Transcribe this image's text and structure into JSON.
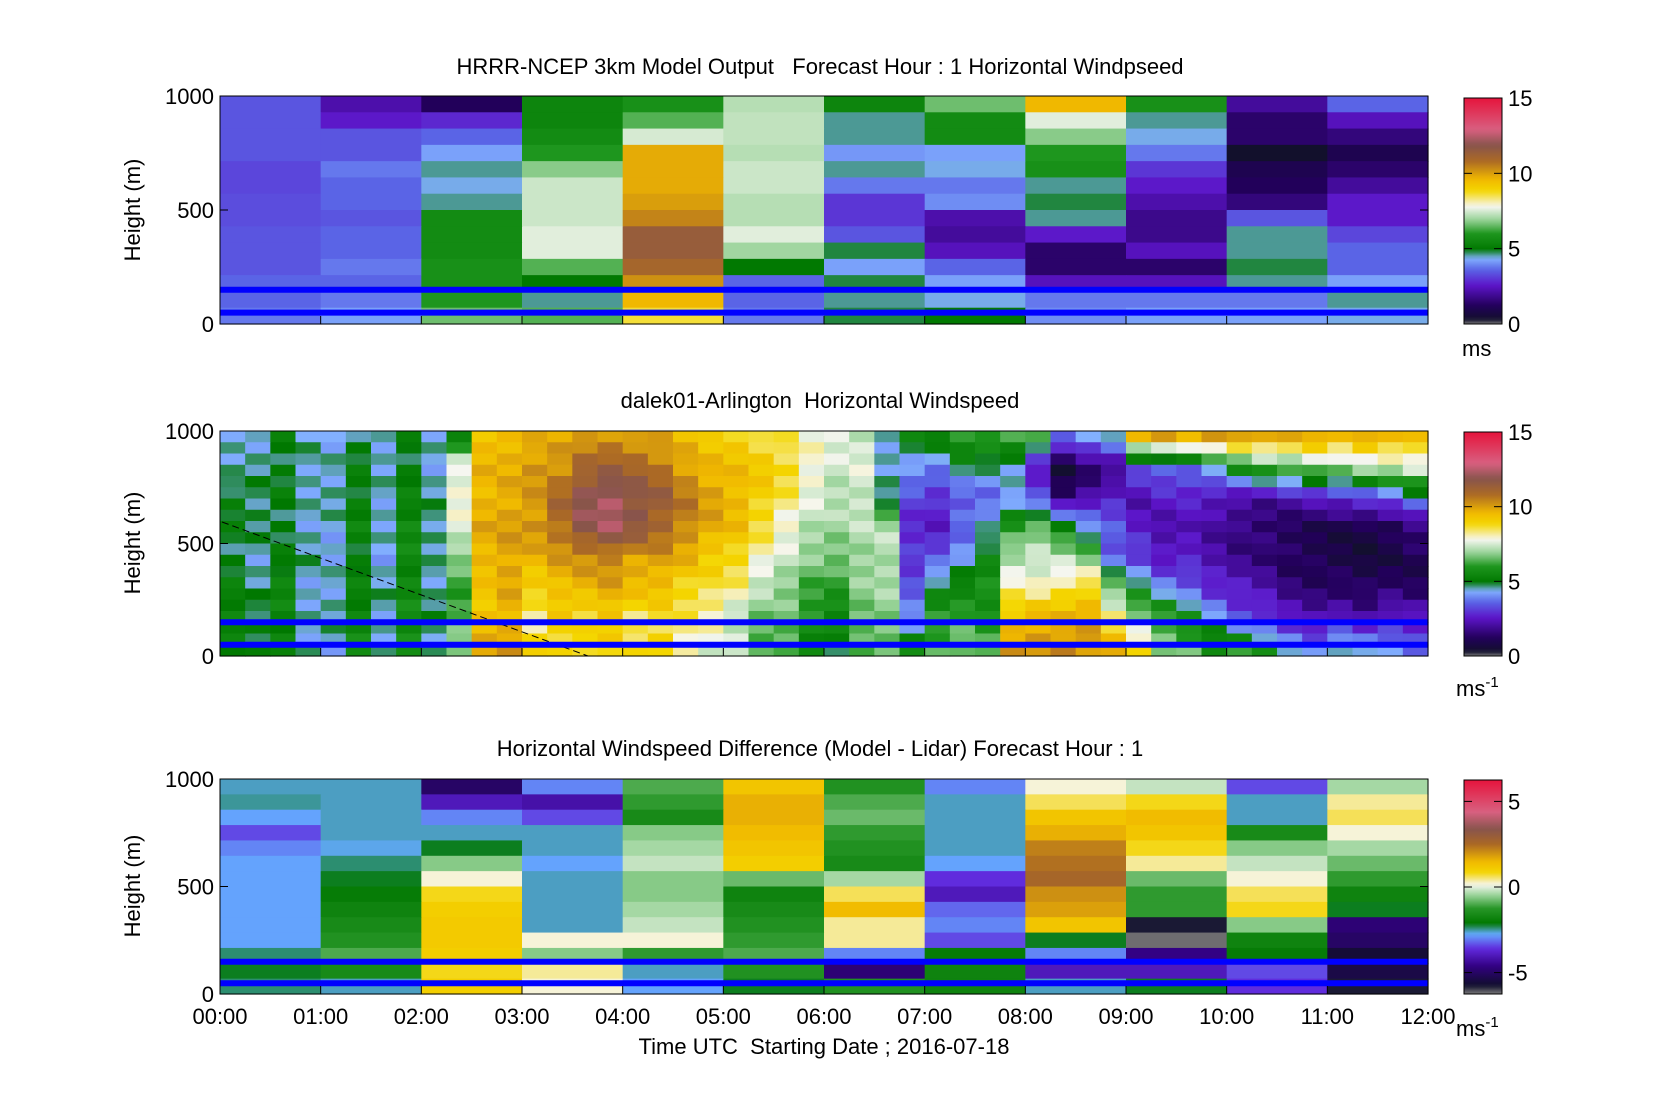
{
  "chart_data": [
    {
      "type": "heatmap",
      "title": "HRRR-NCEP 3km Model Output   Forecast Hour : 1 Horizontal Windpseed",
      "ylabel": "Height (m)",
      "ylim": [
        0,
        1000
      ],
      "yticks": [
        "0",
        "500",
        "1000"
      ],
      "colorbar": {
        "ticks": [
          "0",
          "5",
          "10",
          "15"
        ],
        "range": [
          0,
          15
        ],
        "unit": "ms",
        "unit_sup": ""
      },
      "reference_lines_m": [
        150,
        50
      ],
      "reference_line_color": "#0000ff",
      "ncols": 12,
      "nrows": 14,
      "values": [
        [
          3.4,
          2.2,
          1.2,
          5.4,
          5.8,
          7.2,
          5.4,
          6.6,
          9.6,
          5.8,
          2.0,
          3.6
        ],
        [
          3.4,
          2.6,
          2.8,
          5.4,
          6.4,
          7.3,
          4.6,
          5.6,
          7.6,
          4.6,
          1.4,
          2.4
        ],
        [
          3.4,
          3.4,
          3.6,
          5.6,
          7.5,
          7.3,
          4.6,
          5.6,
          6.8,
          4.4,
          1.4,
          1.6
        ],
        [
          3.4,
          3.4,
          4.2,
          6.0,
          9.8,
          7.2,
          4.1,
          4.2,
          6.0,
          3.8,
          0.3,
          1.0
        ],
        [
          3.2,
          3.8,
          4.6,
          6.8,
          9.8,
          7.4,
          4.6,
          4.4,
          5.8,
          3.0,
          1.0,
          1.4
        ],
        [
          3.2,
          3.6,
          4.4,
          7.4,
          9.8,
          7.4,
          3.8,
          3.8,
          4.6,
          2.6,
          1.2,
          2.0
        ],
        [
          3.3,
          3.6,
          4.6,
          7.4,
          10.0,
          7.2,
          3.0,
          4.0,
          4.8,
          2.2,
          1.6,
          2.6
        ],
        [
          3.3,
          3.4,
          5.6,
          7.4,
          10.4,
          7.2,
          3.0,
          2.2,
          4.6,
          1.8,
          3.4,
          2.6
        ],
        [
          3.4,
          3.6,
          5.6,
          7.6,
          11.4,
          7.6,
          3.4,
          2.0,
          2.6,
          1.8,
          4.6,
          3.2
        ],
        [
          3.4,
          3.6,
          5.6,
          7.6,
          11.4,
          7.0,
          4.8,
          2.4,
          1.4,
          2.4,
          4.6,
          3.6
        ],
        [
          3.4,
          3.8,
          5.8,
          6.4,
          11.0,
          5.0,
          4.2,
          3.6,
          1.4,
          1.4,
          4.8,
          3.6
        ],
        [
          3.6,
          3.6,
          5.8,
          5.0,
          10.2,
          3.6,
          4.8,
          4.2,
          2.4,
          2.4,
          4.6,
          4.2
        ],
        [
          3.6,
          3.8,
          6.0,
          4.6,
          9.6,
          3.6,
          4.6,
          4.4,
          3.8,
          3.8,
          3.8,
          4.6
        ],
        [
          3.8,
          4.2,
          6.6,
          6.4,
          8.6,
          3.8,
          4.8,
          5.0,
          4.0,
          4.2,
          4.2,
          4.4
        ]
      ]
    },
    {
      "type": "heatmap",
      "title": "dalek01-Arlington  Horizontal Windspeed",
      "ylabel": "Height (m)",
      "ylim": [
        0,
        1000
      ],
      "yticks": [
        "0",
        "500",
        "1000"
      ],
      "colorbar": {
        "ticks": [
          "0",
          "5",
          "10",
          "15"
        ],
        "range": [
          0,
          15
        ],
        "unit": "ms",
        "unit_sup": "-1"
      },
      "reference_lines_m": [
        150,
        50
      ],
      "reference_line_color": "#0000ff",
      "annotation": "dashed diagonal line from about 600 m at 00:00 to 0 m near 03:30",
      "ncols": 48,
      "nrows": 20,
      "profile_anchor_rows": 8,
      "profiles": [
        [
          5.0,
          5.4,
          5.2,
          4.8,
          4.9,
          5.1,
          4.4,
          4.6
        ],
        [
          4.8,
          5.0,
          4.6,
          4.5,
          4.7,
          4.8,
          4.6,
          4.5
        ],
        [
          5.4,
          5.2,
          5.5,
          5.0,
          4.8,
          5.0,
          4.9,
          5.0
        ],
        [
          4.6,
          4.4,
          4.4,
          4.6,
          4.5,
          4.4,
          4.6,
          4.5
        ],
        [
          4.4,
          4.6,
          4.5,
          4.3,
          4.4,
          4.6,
          4.5,
          4.2
        ],
        [
          5.6,
          5.4,
          5.2,
          5.0,
          5.3,
          5.1,
          5.0,
          4.8
        ],
        [
          4.4,
          4.5,
          4.6,
          4.3,
          4.4,
          4.5,
          4.4,
          4.6
        ],
        [
          5.8,
          5.6,
          5.5,
          5.4,
          5.6,
          5.2,
          5.0,
          4.9
        ],
        [
          4.6,
          4.8,
          4.6,
          4.5,
          4.7,
          4.6,
          4.4,
          4.4
        ],
        [
          7.0,
          6.4,
          6.0,
          6.8,
          7.6,
          7.8,
          7.8,
          5.2
        ],
        [
          9.8,
          9.4,
          9.2,
          9.6,
          9.8,
          9.6,
          9.6,
          9.4
        ],
        [
          10.0,
          9.6,
          9.8,
          9.9,
          10.0,
          9.8,
          9.7,
          9.6
        ],
        [
          9.2,
          8.0,
          9.0,
          9.6,
          10.2,
          10.0,
          10.2,
          9.6
        ],
        [
          8.8,
          9.0,
          9.4,
          10.0,
          10.8,
          11.0,
          10.2,
          9.8
        ],
        [
          9.0,
          8.6,
          9.6,
          10.2,
          11.8,
          12.0,
          11.0,
          10.0
        ],
        [
          8.8,
          9.2,
          9.8,
          10.4,
          12.2,
          12.4,
          11.2,
          10.2
        ],
        [
          8.6,
          8.4,
          9.4,
          10.0,
          11.6,
          11.8,
          11.0,
          10.0
        ],
        [
          9.0,
          8.6,
          9.4,
          10.0,
          11.0,
          11.4,
          10.6,
          9.8
        ],
        [
          8.0,
          8.4,
          8.8,
          9.6,
          10.4,
          10.6,
          10.0,
          9.4
        ],
        [
          7.6,
          8.0,
          8.6,
          9.0,
          9.8,
          10.0,
          9.6,
          9.0
        ],
        [
          7.4,
          7.2,
          8.2,
          8.8,
          9.4,
          9.6,
          9.4,
          9.0
        ],
        [
          6.2,
          6.6,
          7.2,
          8.0,
          8.6,
          9.0,
          9.2,
          8.6
        ],
        [
          6.4,
          6.6,
          6.8,
          7.4,
          7.8,
          8.4,
          8.8,
          8.4
        ],
        [
          5.4,
          5.8,
          6.2,
          6.8,
          7.2,
          7.6,
          8.0,
          7.8
        ],
        [
          5.0,
          5.4,
          6.0,
          6.6,
          7.0,
          7.2,
          7.4,
          7.6
        ],
        [
          6.2,
          6.6,
          6.8,
          7.0,
          7.2,
          7.4,
          7.6,
          7.4
        ],
        [
          6.4,
          6.8,
          7.0,
          7.2,
          7.2,
          4.6,
          4.4,
          4.6
        ],
        [
          5.8,
          4.0,
          3.4,
          3.0,
          2.8,
          3.2,
          4.2,
          5.2
        ],
        [
          6.4,
          6.0,
          5.2,
          3.4,
          2.6,
          2.8,
          4.0,
          5.4
        ],
        [
          6.8,
          6.2,
          5.6,
          4.2,
          3.6,
          3.4,
          4.8,
          6.0
        ],
        [
          6.4,
          5.8,
          5.8,
          5.4,
          4.4,
          3.6,
          4.6,
          6.2
        ],
        [
          10.0,
          9.4,
          8.2,
          7.2,
          6.0,
          4.2,
          4.4,
          6.4
        ],
        [
          10.2,
          9.8,
          8.0,
          7.4,
          6.6,
          3.2,
          2.4,
          6.0
        ],
        [
          10.4,
          9.6,
          8.6,
          7.2,
          5.6,
          1.4,
          0.6,
          3.6
        ],
        [
          10.2,
          9.8,
          9.0,
          6.8,
          4.2,
          2.2,
          1.2,
          4.2
        ],
        [
          9.8,
          8.4,
          6.8,
          3.6,
          3.4,
          2.8,
          1.6,
          4.8
        ],
        [
          8.6,
          7.2,
          5.2,
          3.2,
          2.6,
          2.2,
          3.4,
          9.6
        ],
        [
          6.8,
          6.4,
          4.2,
          2.4,
          2.2,
          2.6,
          3.6,
          9.8
        ],
        [
          6.6,
          5.6,
          3.6,
          2.6,
          2.4,
          2.6,
          3.8,
          9.6
        ],
        [
          5.8,
          4.6,
          2.8,
          2.2,
          2.0,
          2.4,
          4.6,
          10.0
        ],
        [
          6.2,
          3.4,
          2.6,
          1.8,
          1.6,
          2.2,
          5.6,
          10.2
        ],
        [
          5.4,
          3.2,
          2.2,
          1.6,
          1.4,
          2.0,
          6.4,
          9.8
        ],
        [
          4.6,
          2.6,
          1.6,
          1.2,
          1.2,
          2.2,
          6.6,
          9.6
        ],
        [
          4.0,
          2.2,
          1.4,
          1.0,
          1.0,
          2.4,
          7.0,
          9.8
        ],
        [
          4.8,
          2.6,
          1.4,
          0.8,
          0.8,
          2.8,
          6.8,
          9.4
        ],
        [
          4.4,
          2.2,
          1.2,
          0.6,
          0.8,
          3.2,
          7.2,
          10.0
        ],
        [
          4.0,
          2.8,
          1.4,
          0.8,
          1.0,
          3.6,
          7.4,
          9.6
        ],
        [
          3.6,
          2.6,
          1.2,
          1.0,
          1.6,
          4.2,
          7.8,
          9.2
        ]
      ]
    },
    {
      "type": "heatmap",
      "title": "Horizontal Windspeed Difference (Model - Lidar) Forecast Hour : 1",
      "ylabel": "Height (m)",
      "xlabel": "Time UTC  Starting Date ; 2016-07-18",
      "ylim": [
        0,
        1000
      ],
      "yticks": [
        "0",
        "500",
        "1000"
      ],
      "x": [
        "00:00",
        "01:00",
        "02:00",
        "03:00",
        "04:00",
        "05:00",
        "06:00",
        "07:00",
        "08:00",
        "09:00",
        "10:00",
        "11:00",
        "12:00"
      ],
      "colorbar": {
        "ticks": [
          "-5",
          "0",
          "5"
        ],
        "range": [
          -6.25,
          6.25
        ],
        "unit": "ms",
        "unit_sup": "-1"
      },
      "reference_lines_m": [
        150,
        50
      ],
      "reference_line_color": "#0000ff",
      "ncols": 12,
      "nrows": 14,
      "values": [
        [
          -2.6,
          -2.6,
          -5.0,
          -3.0,
          -1.0,
          1.2,
          -1.4,
          -3.0,
          0.2,
          -0.2,
          -3.4,
          -0.4
        ],
        [
          -2.5,
          -2.6,
          -4.0,
          -4.2,
          -1.2,
          1.6,
          -1.0,
          -2.6,
          0.6,
          0.8,
          -2.6,
          0.4
        ],
        [
          -2.8,
          -2.6,
          -3.0,
          -3.4,
          -1.6,
          1.6,
          -0.8,
          -2.6,
          1.2,
          1.4,
          -2.6,
          0.6
        ],
        [
          -3.4,
          -2.6,
          -2.6,
          -2.6,
          -0.6,
          1.4,
          -1.2,
          -2.6,
          1.6,
          1.2,
          -1.6,
          0.2
        ],
        [
          -3.0,
          -2.7,
          -2.2,
          -2.6,
          -0.4,
          1.2,
          -1.4,
          -2.6,
          2.2,
          0.8,
          -0.6,
          -0.4
        ],
        [
          -2.8,
          -2.4,
          -0.6,
          -2.8,
          -0.2,
          1.0,
          -1.6,
          -2.8,
          2.4,
          0.4,
          -0.2,
          -0.8
        ],
        [
          -2.8,
          -2.2,
          0.2,
          -2.6,
          -0.6,
          -0.8,
          -0.4,
          -3.6,
          2.6,
          -0.8,
          0.2,
          -1.2
        ],
        [
          -2.8,
          -2.0,
          0.8,
          -2.6,
          -0.6,
          -1.8,
          0.6,
          -4.0,
          2.0,
          -1.2,
          0.6,
          -1.8
        ],
        [
          -2.8,
          -1.8,
          1.0,
          -2.6,
          -0.4,
          -1.6,
          1.4,
          -3.2,
          1.8,
          -1.2,
          0.8,
          -2.2
        ],
        [
          -2.8,
          -1.6,
          1.1,
          -2.6,
          -0.2,
          -1.4,
          0.4,
          -3.0,
          1.2,
          -5.8,
          -0.6,
          -4.8
        ],
        [
          -2.8,
          -1.4,
          1.1,
          0.2,
          0.2,
          -1.2,
          0.4,
          -3.4,
          -2.2,
          -6.2,
          -1.8,
          -5.0
        ],
        [
          -2.4,
          -1.0,
          1.0,
          -0.6,
          -1.2,
          -1.0,
          -3.0,
          -2.0,
          -3.0,
          -4.6,
          -2.0,
          -5.6
        ],
        [
          -2.2,
          -1.6,
          0.8,
          0.4,
          -2.6,
          -1.4,
          -4.8,
          -1.8,
          -4.0,
          -4.0,
          -3.4,
          -5.4
        ],
        [
          -2.4,
          -2.6,
          1.0,
          0.2,
          -2.8,
          -2.2,
          -1.4,
          -1.8,
          -2.6,
          -2.2,
          -3.6,
          -5.8
        ]
      ]
    }
  ]
}
